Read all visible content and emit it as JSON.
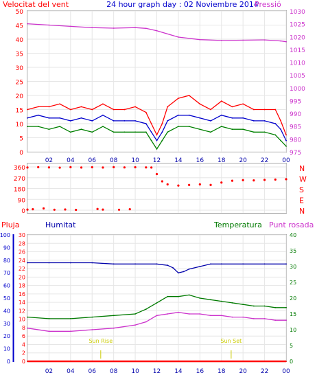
{
  "header": {
    "left_label": "Velocitat del vent",
    "center_title": "24 hour graph day : 02 Noviembre 2014",
    "right_label": "Pressió"
  },
  "colors": {
    "wind_max": "#ff0000",
    "wind_avg": "#0000cc",
    "wind_min": "#008000",
    "pressure": "#cc33cc",
    "direction": "#ff0000",
    "humidity": "#0000aa",
    "temperature": "#007a00",
    "dewpoint": "#cc33cc",
    "rain": "#ff0000",
    "axis_rain": "#0000cc",
    "sun": "#cccc00"
  },
  "legend_bottom": {
    "pluja": "Pluja",
    "humitat": "Humitat",
    "temperatura": "Temperatura",
    "punt_rosada": "Punt rosada"
  },
  "direction_labels": [
    "N",
    "W",
    "S",
    "E",
    "N"
  ],
  "sun_labels": {
    "rise": "Sun Rise",
    "set": "Sun Set"
  },
  "chart_data": [
    {
      "type": "line",
      "name": "wind_pressure",
      "x_ticks": [
        "02",
        "04",
        "06",
        "08",
        "10",
        "12",
        "14",
        "16",
        "18",
        "20",
        "22",
        "00"
      ],
      "y_left_ticks": [
        0,
        5,
        10,
        15,
        20,
        25,
        30,
        35,
        40,
        45,
        50
      ],
      "ylim_left": [
        0,
        50
      ],
      "y_right_ticks": [
        975,
        980,
        985,
        990,
        995,
        1000,
        1005,
        1010,
        1015,
        1020,
        1025,
        1030
      ],
      "ylim_right": [
        975,
        1030
      ],
      "xlim": [
        0,
        24
      ],
      "series": [
        {
          "key": "pressure",
          "axis": "right",
          "x": [
            0,
            2,
            4,
            6,
            8,
            10,
            11,
            12,
            14,
            16,
            18,
            20,
            22,
            23.5,
            24
          ],
          "y": [
            1025,
            1024.5,
            1024,
            1023.5,
            1023.3,
            1023.5,
            1023.2,
            1022.3,
            1019.8,
            1018.8,
            1018.5,
            1018.6,
            1018.7,
            1018.3,
            1018.0
          ]
        },
        {
          "key": "wind_max",
          "axis": "left",
          "x": [
            0,
            1,
            2,
            3,
            4,
            5,
            6,
            7,
            8,
            9,
            10,
            11,
            11.5,
            12,
            12.5,
            13,
            14,
            15,
            16,
            17,
            18,
            19,
            20,
            21,
            22,
            23,
            23.5,
            24
          ],
          "y": [
            15,
            16,
            16,
            17,
            15,
            16,
            15,
            17,
            15,
            15,
            16,
            14,
            10,
            6,
            10,
            16,
            19,
            20,
            17,
            15,
            18,
            16,
            17,
            15,
            15,
            15,
            11,
            6
          ]
        },
        {
          "key": "wind_avg",
          "axis": "left",
          "x": [
            0,
            1,
            2,
            3,
            4,
            5,
            6,
            7,
            8,
            9,
            10,
            11,
            11.5,
            12,
            12.5,
            13,
            14,
            15,
            16,
            17,
            18,
            19,
            20,
            21,
            22,
            23,
            23.5,
            24
          ],
          "y": [
            12,
            13,
            12,
            12,
            11,
            12,
            11,
            13,
            11,
            11,
            11,
            10,
            7,
            4,
            7,
            11,
            13,
            13,
            12,
            11,
            13,
            12,
            12,
            11,
            11,
            10,
            8,
            4
          ]
        },
        {
          "key": "wind_min",
          "axis": "left",
          "x": [
            0,
            1,
            2,
            3,
            4,
            5,
            6,
            7,
            8,
            9,
            10,
            11,
            11.5,
            12,
            12.5,
            13,
            14,
            15,
            16,
            17,
            18,
            19,
            20,
            21,
            22,
            23,
            23.5,
            24
          ],
          "y": [
            9,
            9,
            8,
            9,
            7,
            8,
            7,
            9,
            7,
            7,
            7,
            7,
            4,
            1,
            4,
            7,
            9,
            9,
            8,
            7,
            9,
            8,
            8,
            7,
            7,
            6,
            4,
            2
          ]
        }
      ]
    },
    {
      "type": "scatter",
      "name": "wind_direction",
      "y_ticks": [
        0,
        90,
        180,
        270,
        360
      ],
      "ylim": [
        0,
        360
      ],
      "xlim": [
        0,
        24
      ],
      "series": [
        {
          "key": "direction",
          "x": [
            0,
            1,
            2,
            3,
            4,
            5,
            6,
            7,
            8,
            9,
            10,
            11,
            11.5,
            12,
            12.5,
            13,
            14,
            15,
            16,
            17,
            18,
            19,
            20,
            21,
            22,
            23,
            24
          ],
          "y": [
            355,
            358,
            356,
            354,
            358,
            355,
            357,
            355,
            358,
            356,
            357,
            356,
            355,
            300,
            240,
            215,
            205,
            210,
            215,
            210,
            230,
            245,
            250,
            248,
            252,
            255,
            258
          ]
        },
        {
          "key": "direction_north_low",
          "x": [
            0,
            0.5,
            1.5,
            2.5,
            3.5,
            4.5,
            6.5,
            7,
            8.5,
            9.5
          ],
          "y": [
            5,
            8,
            15,
            4,
            6,
            3,
            10,
            5,
            4,
            8
          ]
        }
      ]
    },
    {
      "type": "line",
      "name": "rain_humidity_temperature",
      "y_left_rain_ticks": [
        0,
        10,
        20,
        30,
        40,
        50,
        60,
        70,
        80,
        90,
        100
      ],
      "y_left_ticks": [
        0,
        2,
        4,
        6,
        8,
        10,
        12,
        14,
        16,
        18,
        20,
        22,
        24,
        26,
        28,
        30
      ],
      "ylim_left": [
        0,
        30
      ],
      "y_right_ticks": [
        0,
        5,
        10,
        15,
        20,
        25,
        30,
        35,
        40
      ],
      "ylim_right": [
        0,
        40
      ],
      "xlim": [
        0,
        24
      ],
      "series": [
        {
          "key": "humidity",
          "axis": "left_rain",
          "x": [
            0,
            2,
            4,
            6,
            8,
            10,
            12,
            13,
            13.5,
            14,
            14.5,
            15,
            16,
            17,
            18,
            20,
            22,
            24
          ],
          "y": [
            78,
            78,
            78,
            78,
            77,
            77,
            77,
            76,
            74,
            70,
            71,
            73,
            75,
            77,
            77,
            77,
            77,
            77
          ]
        },
        {
          "key": "temperature",
          "axis": "right",
          "x": [
            0,
            2,
            4,
            6,
            8,
            10,
            11,
            12,
            13,
            14,
            15,
            16,
            17,
            18,
            19,
            20,
            21,
            22,
            23,
            24
          ],
          "y": [
            14,
            13.5,
            13.5,
            14,
            14.5,
            15,
            16.5,
            18.5,
            20.5,
            20.5,
            21,
            20,
            19.5,
            19,
            18.5,
            18,
            17.5,
            17.5,
            17,
            17
          ]
        },
        {
          "key": "dewpoint",
          "axis": "right",
          "x": [
            0,
            2,
            4,
            6,
            8,
            10,
            11,
            12,
            13,
            14,
            15,
            16,
            17,
            18,
            19,
            20,
            21,
            22,
            23,
            24
          ],
          "y": [
            10.5,
            9.5,
            9.5,
            10,
            10.5,
            11.5,
            12.5,
            14.5,
            15,
            15.5,
            15,
            15,
            14.5,
            14.5,
            14,
            14,
            13.5,
            13.5,
            13,
            13
          ]
        },
        {
          "key": "rain",
          "axis": "left_rain",
          "x": [
            0,
            24
          ],
          "y": [
            0,
            0
          ]
        }
      ],
      "sun_rise_hour": 6.8,
      "sun_set_hour": 18.9
    }
  ]
}
